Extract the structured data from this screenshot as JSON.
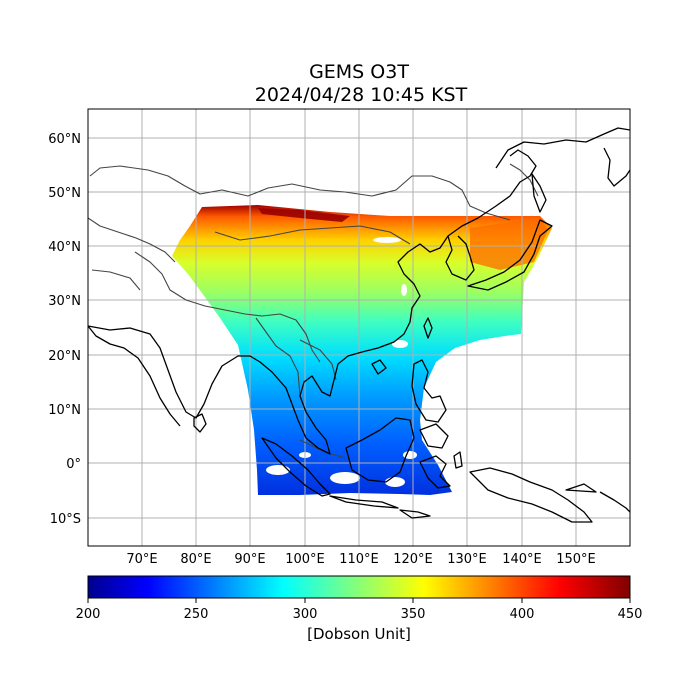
{
  "title": {
    "line1": "GEMS O3T",
    "line2": "2024/04/28 10:45 KST"
  },
  "map": {
    "lon_range": [
      60,
      160
    ],
    "lat_range": [
      -15,
      65
    ],
    "lon_ticks": [
      "70°E",
      "80°E",
      "90°E",
      "100°E",
      "110°E",
      "120°E",
      "130°E",
      "140°E",
      "150°E"
    ],
    "lat_ticks": [
      "60°N",
      "50°N",
      "40°N",
      "30°N",
      "20°N",
      "10°N",
      "0°",
      "10°S"
    ],
    "grid": true
  },
  "colorbar": {
    "colormap": "jet",
    "min": 200,
    "max": 450,
    "ticks": [
      "200",
      "250",
      "300",
      "350",
      "400",
      "450"
    ],
    "label": "[Dobson Unit]"
  },
  "ozone_field": {
    "description_levels": [
      {
        "region": "north strip 45-47°N",
        "value": 420
      },
      {
        "region": "40°N band",
        "value": 385
      },
      {
        "region": "35°N band",
        "value": 350
      },
      {
        "region": "30°N band",
        "value": 320
      },
      {
        "region": "20°N band",
        "value": 285
      },
      {
        "region": "equator",
        "value": 250
      }
    ],
    "colors": {
      "low": "#00008f",
      "mid": "#00ffff",
      "high": "#800000"
    }
  }
}
